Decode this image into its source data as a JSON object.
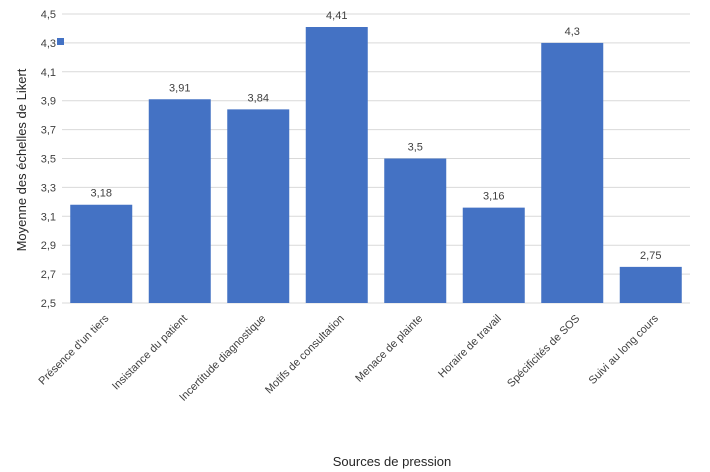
{
  "chart_data": {
    "type": "bar",
    "title": "",
    "xlabel": "Sources de pression",
    "ylabel": "Moyenne des échelles de Likert",
    "categories": [
      "Présence d'un tiers",
      "Insistance du patient",
      "Incertitude diagnostique",
      "Motifs de consultation",
      "Menace de plainte",
      "Horaire de travail",
      "Spécificités de SOS",
      "Suivi au long cours"
    ],
    "values": [
      3.18,
      3.91,
      3.84,
      4.41,
      3.5,
      3.16,
      4.3,
      2.75
    ],
    "value_labels": [
      "3,18",
      "3,91",
      "3,84",
      "4,41",
      "3,5",
      "3,16",
      "4,3",
      "2,75"
    ],
    "ylim": [
      2.5,
      4.5
    ],
    "yticks": [
      2.5,
      2.7,
      2.9,
      3.1,
      3.3,
      3.5,
      3.7,
      3.9,
      4.1,
      4.3,
      4.5
    ],
    "ytick_labels": [
      "2,5",
      "2,7",
      "2,9",
      "3,1",
      "3,3",
      "3,5",
      "3,7",
      "3,9",
      "4,1",
      "4,3",
      "4,5"
    ],
    "grid": true,
    "legend": "right",
    "bar_color": "#4472C4",
    "grid_color": "#d9d9d9"
  }
}
